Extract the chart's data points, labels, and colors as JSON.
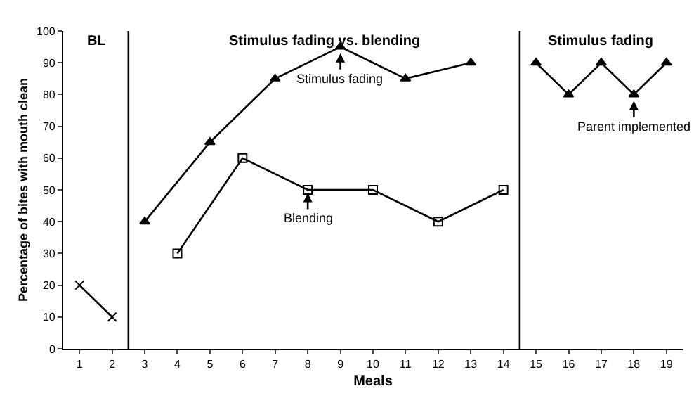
{
  "chart_data": {
    "type": "line",
    "xlabel": "Meals",
    "ylabel": "Percentage of bites with mouth clean",
    "xlim": [
      0.5,
      19.5
    ],
    "xticks": [
      1,
      2,
      3,
      4,
      5,
      6,
      7,
      8,
      9,
      10,
      11,
      12,
      13,
      14,
      15,
      16,
      17,
      18,
      19
    ],
    "ylim": [
      0,
      100
    ],
    "yticks": [
      0,
      10,
      20,
      30,
      40,
      50,
      60,
      70,
      80,
      90,
      100
    ],
    "series": [
      {
        "color": "#000000",
        "marker": "cross",
        "x": [
          1,
          2
        ],
        "values": [
          20,
          10
        ]
      },
      {
        "color": "#000000",
        "marker": "triangle",
        "x": [
          3,
          5,
          7,
          9,
          11,
          13
        ],
        "values": [
          40,
          65,
          85,
          95,
          85,
          90
        ]
      },
      {
        "color": "#000000",
        "marker": "square",
        "x": [
          4,
          6,
          8,
          10,
          12,
          14
        ],
        "values": [
          30,
          60,
          50,
          50,
          40,
          50
        ]
      },
      {
        "color": "#000000",
        "marker": "triangle",
        "x": [
          15,
          16,
          17,
          18,
          19
        ],
        "values": [
          90,
          80,
          90,
          80,
          90
        ]
      }
    ],
    "ref_lines": [
      {
        "axis": "x",
        "value": 2.5,
        "color": "#000000"
      },
      {
        "axis": "x",
        "value": 14.5,
        "color": "#000000"
      }
    ],
    "annotations": [
      "BL",
      "Stimulus fading vs. blending",
      "Stimulus fading",
      {
        "text": "Stimulus fading",
        "x": 9,
        "y": 93
      },
      {
        "text": "Blending",
        "x": 8,
        "y": 49
      },
      {
        "text": "Parent implemented",
        "x": 18,
        "y": 78
      }
    ]
  }
}
